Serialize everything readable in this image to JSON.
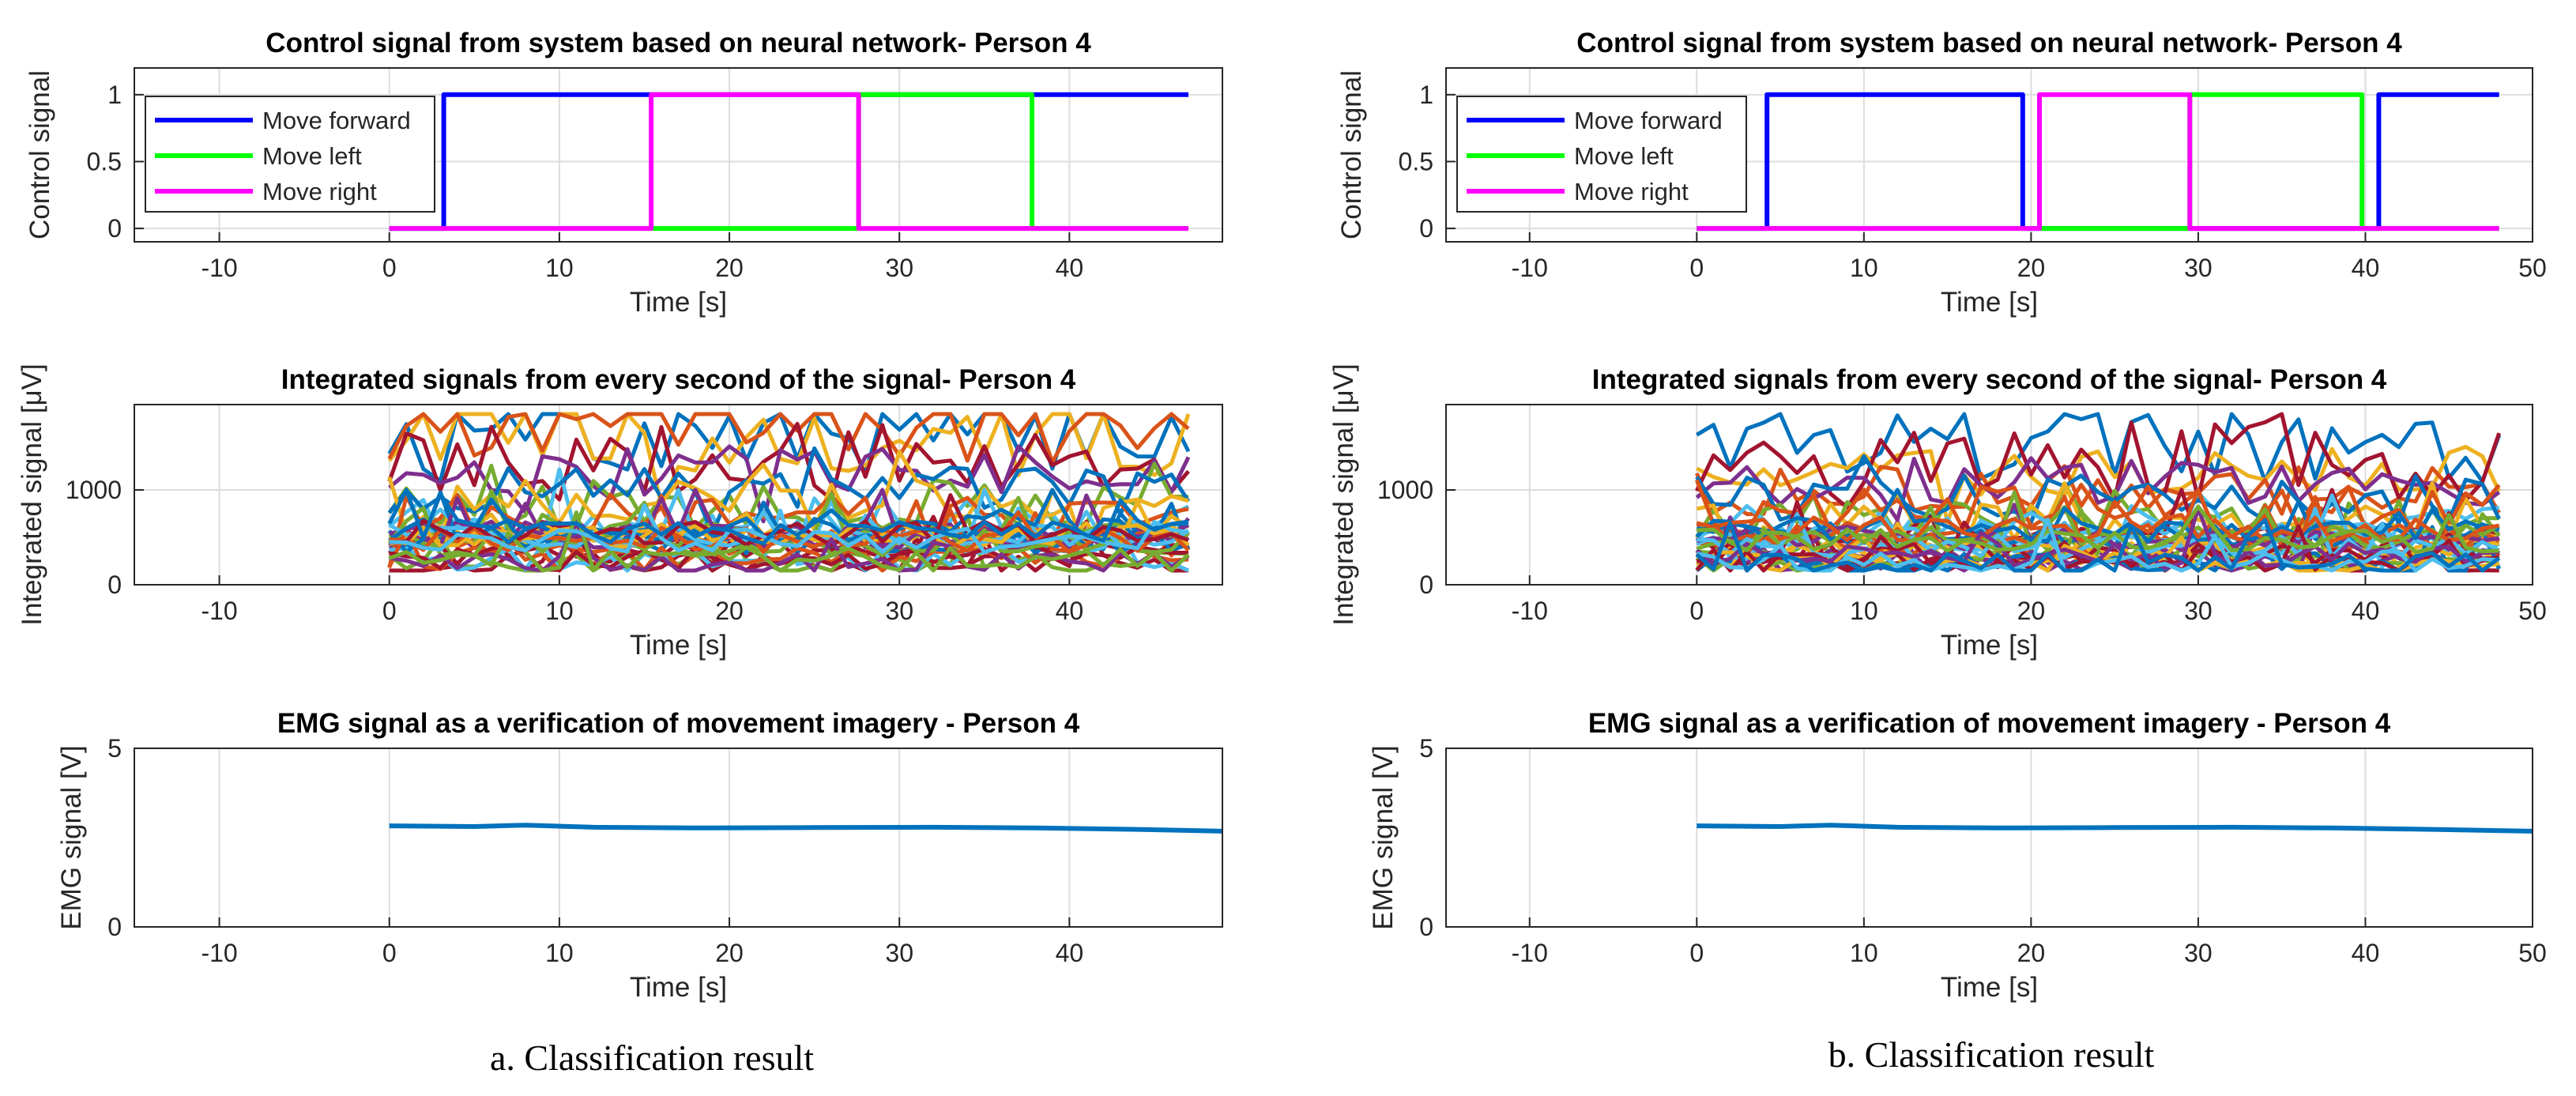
{
  "captions": {
    "left": "a. Classification result",
    "right": "b. Classification result"
  },
  "colors": {
    "forward": "#0000ff",
    "left": "#00ff00",
    "right": "#ff00ff",
    "palette": [
      "#0072bd",
      "#edb120",
      "#d95319",
      "#a2142f",
      "#7e2f8e",
      "#77ac30",
      "#4dbeee"
    ],
    "emg": "#0072bd"
  },
  "chart_data": [
    {
      "id": "a-control",
      "type": "line",
      "title": "Control signal from system based on neural network- Person 4",
      "xlabel": "Time [s]",
      "ylabel": "Control signal",
      "xlim": [
        -15,
        49
      ],
      "ylim": [
        -0.1,
        1.2
      ],
      "xticks": [
        -10,
        0,
        10,
        20,
        30,
        40
      ],
      "yticks": [
        0,
        0.5,
        1
      ],
      "xtick_labels": [
        "-10",
        "0",
        "10",
        "20",
        "30",
        "40"
      ],
      "ytick_labels": [
        "0",
        "0.5",
        "1"
      ],
      "legend": "top-left",
      "series": [
        {
          "name": "Move forward",
          "color": "#0000ff",
          "x": [
            0,
            3.2,
            3.2,
            47
          ],
          "y": [
            0,
            0,
            1,
            1
          ]
        },
        {
          "name": "Move left",
          "color": "#00ff00",
          "x": [
            0,
            15.4,
            15.4,
            27.6,
            27.6,
            37.8,
            37.8,
            47
          ],
          "y": [
            0,
            0,
            0,
            0,
            1,
            1,
            0,
            0
          ]
        },
        {
          "name": "Move right",
          "color": "#ff00ff",
          "x": [
            0,
            15.4,
            15.4,
            27.6,
            27.6,
            47
          ],
          "y": [
            0,
            0,
            1,
            1,
            0,
            0
          ]
        }
      ]
    },
    {
      "id": "a-integrated",
      "type": "line",
      "title": "Integrated signals from every second of the signal- Person 4",
      "xlabel": "Time [s]",
      "ylabel": "Integrated signal [μV]",
      "xlim": [
        -15,
        49
      ],
      "ylim": [
        0,
        1900
      ],
      "xticks": [
        -10,
        0,
        10,
        20,
        30,
        40
      ],
      "yticks": [
        0,
        1000
      ],
      "xtick_labels": [
        "-10",
        "0",
        "10",
        "20",
        "30",
        "40"
      ],
      "ytick_labels": [
        "0",
        "1000"
      ],
      "noise_series": {
        "count": 36,
        "x_start": 0,
        "x_end": 47,
        "seed": 7,
        "high_starts": [
          1600,
          1550,
          1700,
          1300,
          1200,
          850,
          650,
          1000,
          900,
          700
        ]
      }
    },
    {
      "id": "a-emg",
      "type": "line",
      "title": "EMG signal as a verification of movement imagery - Person 4",
      "xlabel": "Time [s]",
      "ylabel": "EMG signal [V]",
      "xlim": [
        -15,
        49
      ],
      "ylim": [
        0,
        5
      ],
      "xticks": [
        -10,
        0,
        10,
        20,
        30,
        40
      ],
      "yticks": [
        0,
        5
      ],
      "xtick_labels": [
        "-10",
        "0",
        "10",
        "20",
        "30",
        "40"
      ],
      "ytick_labels": [
        "0",
        "5"
      ],
      "series": [
        {
          "name": "EMG",
          "color": "#0072bd",
          "x": [
            0,
            5,
            8,
            12,
            18,
            25,
            32,
            38,
            44,
            49
          ],
          "y": [
            2.83,
            2.81,
            2.85,
            2.79,
            2.77,
            2.78,
            2.79,
            2.77,
            2.73,
            2.68
          ]
        }
      ]
    },
    {
      "id": "b-control",
      "type": "line",
      "title": "Control signal from system based on neural network- Person 4",
      "xlabel": "Time [s]",
      "ylabel": "Control signal",
      "xlim": [
        -15,
        50
      ],
      "ylim": [
        -0.1,
        1.2
      ],
      "xticks": [
        -10,
        0,
        10,
        20,
        30,
        40,
        50
      ],
      "yticks": [
        0,
        0.5,
        1
      ],
      "xtick_labels": [
        "-10",
        "0",
        "10",
        "20",
        "30",
        "40",
        "50"
      ],
      "ytick_labels": [
        "0",
        "0.5",
        "1"
      ],
      "legend": "top-left",
      "series": [
        {
          "name": "Move forward",
          "color": "#0000ff",
          "x": [
            0,
            4.2,
            4.2,
            19.5,
            19.5,
            40.8,
            40.8,
            48
          ],
          "y": [
            0,
            0,
            1,
            1,
            0,
            0,
            1,
            1
          ]
        },
        {
          "name": "Move left",
          "color": "#00ff00",
          "x": [
            0,
            29.5,
            29.5,
            39.8,
            39.8,
            48
          ],
          "y": [
            0,
            0,
            1,
            1,
            0,
            0
          ]
        },
        {
          "name": "Move right",
          "color": "#ff00ff",
          "x": [
            0,
            20.5,
            20.5,
            29.5,
            29.5,
            48
          ],
          "y": [
            0,
            0,
            1,
            1,
            0,
            0
          ]
        }
      ]
    },
    {
      "id": "b-integrated",
      "type": "line",
      "title": "Integrated signals from every second of the signal- Person 4",
      "xlabel": "Time [s]",
      "ylabel": "Integrated signal [μV]",
      "xlim": [
        -15,
        50
      ],
      "ylim": [
        0,
        1900
      ],
      "xticks": [
        -10,
        0,
        10,
        20,
        30,
        40,
        50
      ],
      "yticks": [
        0,
        1000
      ],
      "xtick_labels": [
        "-10",
        "0",
        "10",
        "20",
        "30",
        "40",
        "50"
      ],
      "ytick_labels": [
        "0",
        "1000"
      ],
      "noise_series": {
        "count": 36,
        "x_start": 0,
        "x_end": 48,
        "seed": 19,
        "high_starts": [
          1500,
          1200,
          1000,
          1300,
          1100,
          700,
          600,
          900,
          650,
          800
        ]
      }
    },
    {
      "id": "b-emg",
      "type": "line",
      "title": "EMG signal as a verification of movement imagery - Person 4",
      "xlabel": "Time [s]",
      "ylabel": "EMG signal [V]",
      "xlim": [
        -15,
        50
      ],
      "ylim": [
        0,
        5
      ],
      "xticks": [
        -10,
        0,
        10,
        20,
        30,
        40,
        50
      ],
      "yticks": [
        0,
        5
      ],
      "xtick_labels": [
        "-10",
        "0",
        "10",
        "20",
        "30",
        "40",
        "50"
      ],
      "ytick_labels": [
        "0",
        "5"
      ],
      "series": [
        {
          "name": "EMG",
          "color": "#0072bd",
          "x": [
            0,
            5,
            8,
            12,
            18,
            25,
            32,
            38,
            44,
            50
          ],
          "y": [
            2.83,
            2.81,
            2.85,
            2.79,
            2.77,
            2.78,
            2.79,
            2.77,
            2.73,
            2.68
          ]
        }
      ]
    }
  ]
}
